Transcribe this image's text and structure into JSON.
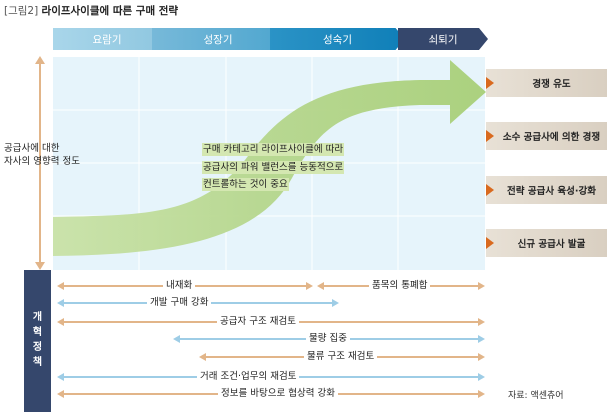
{
  "title": {
    "number": "[그림2]",
    "text": "라이프사이클에 따른 구매 전략"
  },
  "phases": [
    "요람기",
    "성장기",
    "성숙기",
    "쇠퇴기"
  ],
  "y_axis_label": [
    "공급사에 대한",
    "자사의 영향력 정도"
  ],
  "center_text": [
    "구매 카테고리 라이프사이클에 따라",
    "공급사의 파워 밸런스를 능동적으로",
    "컨트롤하는 것이 중요"
  ],
  "strategies": [
    "경쟁 유도",
    "소수 공급사에 의한 경쟁",
    "전략 공급사 육성·강화",
    "신규 공급사 발굴"
  ],
  "policy_label": [
    "개",
    "혁",
    "정",
    "책"
  ],
  "policies": [
    "내재화",
    "품목의 통폐합",
    "개발 구매 강화",
    "공급자 구조 재검토",
    "물량 집중",
    "물류 구조 재검토",
    "거래 조건·업무의 재검토",
    "정보를 바탕으로 협상력 강화"
  ],
  "source": "자료: 액센츄어",
  "colors": {
    "orange": "#d96a1f",
    "orange_line": "#e2b589",
    "blue_line": "#9ecde6",
    "navy": "#35476c",
    "green": "#b9d88d"
  }
}
